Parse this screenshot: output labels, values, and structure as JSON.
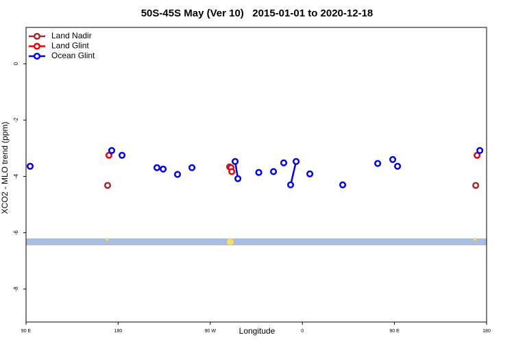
{
  "chart_data": {
    "type": "line",
    "title": "50S-45S May (Ver 10)   2015-01-01 to 2020-12-18",
    "x_label": "Longitude",
    "y_label": "XCO2 - MLO trend (ppm)",
    "xlim": [
      90,
      540
    ],
    "ylim": [
      -9.17,
      1.29
    ],
    "xticks": [
      {
        "value": 90,
        "label": "90 E"
      },
      180,
      {
        "value": 270,
        "label": "90 W"
      },
      {
        "value": 360,
        "label": "0"
      },
      {
        "value": 450,
        "label": "90 E"
      },
      {
        "value": 540,
        "label": "180"
      }
    ],
    "yticks": [
      0,
      -2,
      -4,
      -6,
      -8
    ],
    "legend": "top-left",
    "series": [
      {
        "name": "Land Nadir",
        "color": "#a52a2a",
        "x": [
          169.7,
          null,
          288.9,
          null,
          529.4
        ],
        "values": [
          -4.32,
          null,
          -3.66,
          null,
          -4.32
        ]
      },
      {
        "name": "Land Glint",
        "color": "#ee0000",
        "x": [
          171.0,
          null,
          290.3,
          291.0,
          null,
          530.7
        ],
        "values": [
          -3.25,
          null,
          -3.69,
          -3.83,
          null,
          -3.25
        ]
      },
      {
        "name": "Ocean Glint",
        "color": "#0000ee",
        "x": [
          94.0,
          null,
          173.7,
          null,
          183.8,
          null,
          217.9,
          null,
          224.0,
          null,
          238.0,
          null,
          252.1,
          null,
          294.3,
          297.0,
          null,
          317.4,
          null,
          331.8,
          null,
          341.8,
          null,
          348.5,
          353.9,
          null,
          367.3,
          null,
          399.4,
          null,
          433.6,
          null,
          448.3,
          null,
          453.0,
          null,
          533.4
        ],
        "values": [
          -3.64,
          null,
          -3.08,
          null,
          -3.25,
          null,
          -3.69,
          null,
          -3.74,
          null,
          -3.93,
          null,
          -3.69,
          null,
          -3.47,
          -4.08,
          null,
          -3.86,
          null,
          -3.83,
          null,
          -3.52,
          null,
          -4.3,
          -3.47,
          null,
          -3.91,
          null,
          -4.3,
          null,
          -3.54,
          null,
          -3.4,
          null,
          -3.64,
          null,
          -3.08
        ]
      }
    ]
  }
}
